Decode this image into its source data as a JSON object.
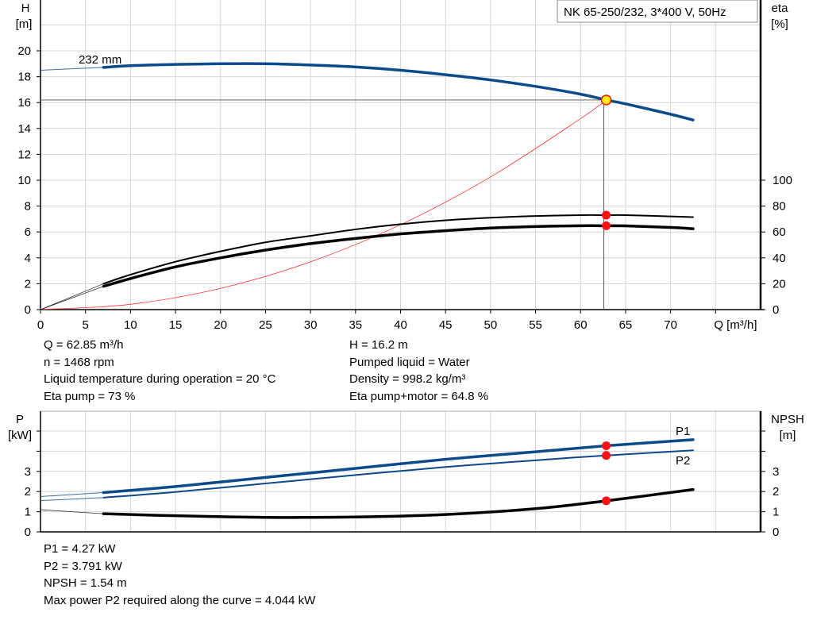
{
  "title_box": "NK 65-250/232, 3*400 V, 50Hz",
  "colors": {
    "head": "#0b4a8b",
    "power": "#0b4a8b",
    "eta": "#000000",
    "npsh": "#000000",
    "system": "#ff3030",
    "marker": "#ff1010",
    "duty_marker_fill": "#ffee00",
    "grid": "#d4d4d4"
  },
  "chart_data": [
    {
      "type": "line",
      "x_label": "Q [m³/h]",
      "y_label": "H",
      "y_unit": "[m]",
      "y2_label": "eta",
      "y2_unit": "[%]",
      "xlim": [
        0,
        80
      ],
      "ylim": [
        0,
        22
      ],
      "y2lim": [
        0,
        100
      ],
      "grid": true,
      "x_ticks": [
        "0",
        "5",
        "10",
        "15",
        "20",
        "25",
        "30",
        "35",
        "40",
        "45",
        "50",
        "55",
        "60",
        "65",
        "70"
      ],
      "y_ticks": [
        "0",
        "2",
        "4",
        "6",
        "8",
        "10",
        "12",
        "14",
        "16",
        "18",
        "20"
      ],
      "y2_ticks": [
        "0",
        "20",
        "40",
        "60",
        "80",
        "100"
      ],
      "curve_label": "232 mm",
      "series": [
        {
          "name": "232 mm",
          "axis": "H",
          "x": [
            0,
            7,
            10,
            15,
            20,
            25,
            30,
            35,
            40,
            45,
            50,
            55,
            60,
            62.85,
            65,
            70,
            72.5
          ],
          "y": [
            18.5,
            18.72,
            18.85,
            18.95,
            19.0,
            19.0,
            18.9,
            18.75,
            18.5,
            18.15,
            17.75,
            17.25,
            16.65,
            16.2,
            15.9,
            15.1,
            14.65
          ]
        },
        {
          "axis": "eta",
          "x": [
            0,
            7,
            10,
            15,
            20,
            25,
            30,
            35,
            40,
            45,
            50,
            55,
            60,
            62.85,
            65,
            70,
            72.5
          ],
          "y": [
            0,
            20,
            27,
            37,
            45,
            52,
            57,
            62,
            66,
            69,
            71,
            72.3,
            73,
            73,
            73,
            72,
            71.5
          ]
        },
        {
          "axis": "eta",
          "x": [
            0,
            7,
            10,
            15,
            20,
            25,
            30,
            35,
            40,
            45,
            50,
            55,
            60,
            62.85,
            65,
            70,
            72.5
          ],
          "y": [
            0,
            18,
            24,
            33,
            40,
            46,
            51,
            55,
            58.5,
            61,
            63,
            64.2,
            64.8,
            64.8,
            64.7,
            63.5,
            62.5
          ]
        },
        {
          "axis": "H",
          "x": [
            0,
            10,
            20,
            30,
            40,
            50,
            60,
            62.85
          ],
          "y": [
            0,
            0.41,
            1.64,
            3.69,
            6.56,
            10.25,
            14.76,
            16.2
          ]
        }
      ],
      "duty_point": {
        "Q": 62.85,
        "H": 16.2,
        "eta_pump": 73,
        "eta_pump_motor": 64.8
      }
    },
    {
      "type": "line",
      "y_label": "P",
      "y_unit": "[kW]",
      "y2_label": "NPSH",
      "y2_unit": "[m]",
      "xlim": [
        0,
        80
      ],
      "ylim": [
        0,
        5
      ],
      "y2lim": [
        0,
        5
      ],
      "grid": true,
      "y_ticks": [
        "0",
        "1",
        "2",
        "3"
      ],
      "y2_ticks": [
        "0",
        "1",
        "2",
        "3"
      ],
      "series": [
        {
          "name": "P1",
          "axis": "P",
          "x": [
            0,
            7,
            15,
            25,
            35,
            45,
            55,
            62.85,
            72.5
          ],
          "y": [
            1.75,
            1.95,
            2.25,
            2.7,
            3.15,
            3.6,
            3.97,
            4.27,
            4.57
          ]
        },
        {
          "name": "P2",
          "axis": "P",
          "x": [
            0,
            7,
            15,
            25,
            35,
            45,
            55,
            62.85,
            72.5
          ],
          "y": [
            1.55,
            1.7,
            1.98,
            2.4,
            2.82,
            3.22,
            3.55,
            3.791,
            4.044
          ]
        },
        {
          "axis": "NPSH",
          "x": [
            0,
            7,
            15,
            25,
            35,
            45,
            55,
            62.85,
            72.5
          ],
          "y": [
            1.1,
            0.9,
            0.8,
            0.72,
            0.74,
            0.86,
            1.15,
            1.54,
            2.1
          ]
        }
      ],
      "duty_point": {
        "Q": 62.85,
        "P1": 4.27,
        "P2": 3.791,
        "NPSH": 1.54
      }
    }
  ],
  "info_top_left": [
    "Q = 62.85 m³/h",
    "n = 1468 rpm",
    "Liquid temperature during operation = 20 °C",
    "Eta pump = 73 %"
  ],
  "info_top_right": [
    "H = 16.2 m",
    "Pumped liquid = Water",
    "Density = 998.2 kg/m³",
    "Eta pump+motor = 64.8 %"
  ],
  "info_bottom": [
    "P1 = 4.27 kW",
    "P2 = 3.791 kW",
    "NPSH = 1.54 m",
    "Max power P2 required along the curve = 4.044 kW"
  ]
}
